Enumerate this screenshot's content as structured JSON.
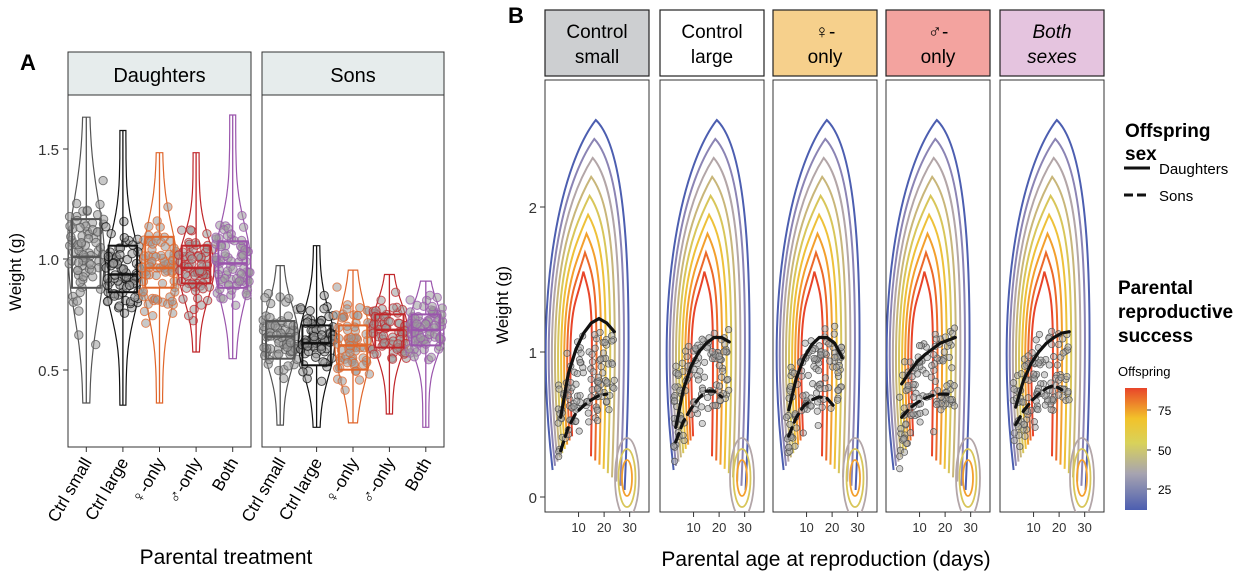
{
  "panel_a": {
    "letter": "A",
    "facets": [
      "Daughters",
      "Sons"
    ],
    "ylabel": "Weight (g)",
    "xlabel": "Parental treatment",
    "ytick_labels": [
      "0.5",
      "1.0",
      "1.5"
    ],
    "categories": [
      "Ctrl small",
      "Ctrl large",
      "♀-only",
      "♂-only",
      "Both"
    ]
  },
  "panel_b": {
    "letter": "B",
    "facets": [
      {
        "lines": [
          "Control",
          "small"
        ],
        "fill": "#cdcfd1",
        "italic": false
      },
      {
        "lines": [
          "Control",
          "large"
        ],
        "fill": "#ffffff",
        "italic": false
      },
      {
        "lines": [
          "♀-",
          "only"
        ],
        "fill": "#f6d08c",
        "italic": false
      },
      {
        "lines": [
          "♂-",
          "only"
        ],
        "fill": "#f3a39f",
        "italic": false
      },
      {
        "lines": [
          "Both",
          "sexes"
        ],
        "fill": "#e5c4df",
        "italic": true
      }
    ],
    "ylabel": "Weight (g)",
    "xlabel": "Parental age at reproduction (days)",
    "ytick_labels": [
      "0",
      "1",
      "2"
    ],
    "xtick_labels": [
      "10",
      "20",
      "30"
    ]
  },
  "legend": {
    "sex_title_lines": [
      "Offspring",
      "sex"
    ],
    "daughters": "Daughters",
    "sons": "Sons",
    "rs_title_lines": [
      "Parental",
      "reproductive",
      "success"
    ],
    "colorbar_title": "Offspring",
    "colorbar_ticks": [
      "75",
      "50",
      "25"
    ]
  },
  "colors": {
    "ctrl_small": "#555555",
    "ctrl_large": "#111111",
    "female_only": "#e0662b",
    "male_only": "#c0262a",
    "both": "#9a55ac",
    "point_grey": "#9a9a9a",
    "strip": "#e6ecec",
    "contour_low": "#4c5eb0",
    "contour_high": "#e8452a"
  },
  "chart_data": [
    {
      "type": "box",
      "panel": "A",
      "facet": "Daughters",
      "categories": [
        "Ctrl small",
        "Ctrl large",
        "♀-only",
        "♂-only",
        "Both"
      ],
      "ylabel": "Weight (g)",
      "ylim": [
        0.22,
        1.72
      ],
      "box_q1": [
        0.87,
        0.85,
        0.87,
        0.89,
        0.87
      ],
      "box_median": [
        1.01,
        0.93,
        0.96,
        0.96,
        0.98
      ],
      "box_q3": [
        1.18,
        1.06,
        1.1,
        1.06,
        1.08
      ],
      "whisker_low": [
        0.35,
        0.34,
        0.35,
        0.58,
        0.55
      ],
      "whisker_high": [
        1.64,
        1.58,
        1.48,
        1.48,
        1.65
      ]
    },
    {
      "type": "box",
      "panel": "A",
      "facet": "Sons",
      "categories": [
        "Ctrl small",
        "Ctrl large",
        "♀-only",
        "♂-only",
        "Both"
      ],
      "ylabel": "Weight (g)",
      "ylim": [
        0.22,
        1.72
      ],
      "box_q1": [
        0.55,
        0.52,
        0.5,
        0.6,
        0.61
      ],
      "box_median": [
        0.65,
        0.62,
        0.61,
        0.68,
        0.68
      ],
      "box_q3": [
        0.72,
        0.7,
        0.7,
        0.75,
        0.75
      ],
      "whisker_low": [
        0.25,
        0.24,
        0.26,
        0.3,
        0.24
      ],
      "whisker_high": [
        0.97,
        1.06,
        0.95,
        0.93,
        0.9
      ]
    },
    {
      "type": "line",
      "panel": "B",
      "xlabel": "Parental age at reproduction (days)",
      "ylabel": "Weight (g)",
      "xlim": [
        0,
        36
      ],
      "ylim": [
        -0.05,
        2.7
      ],
      "facets": [
        "Control small",
        "Control large",
        "♀-only",
        "♂-only",
        "Both sexes"
      ],
      "x": [
        3,
        6,
        9,
        12,
        15,
        18,
        21,
        24
      ],
      "series": [
        {
          "name": "Daughters",
          "facet": "Control small",
          "values": [
            0.55,
            0.85,
            1.02,
            1.13,
            1.2,
            1.23,
            1.2,
            1.14
          ]
        },
        {
          "name": "Sons",
          "facet": "Control small",
          "values": [
            0.32,
            0.48,
            0.58,
            0.63,
            0.67,
            0.7,
            0.71,
            null
          ]
        },
        {
          "name": "Daughters",
          "facet": "Control large",
          "values": [
            0.48,
            0.74,
            0.9,
            1.0,
            1.06,
            1.1,
            1.1,
            1.07
          ]
        },
        {
          "name": "Sons",
          "facet": "Control large",
          "values": [
            0.38,
            0.52,
            0.61,
            0.68,
            0.73,
            0.73,
            0.69,
            null
          ]
        },
        {
          "name": "Daughters",
          "facet": "♀-only",
          "values": [
            0.6,
            0.82,
            0.96,
            1.05,
            1.1,
            1.1,
            1.06,
            0.96
          ]
        },
        {
          "name": "Sons",
          "facet": "♀-only",
          "values": [
            0.42,
            0.55,
            0.63,
            0.67,
            0.69,
            0.68,
            0.62,
            null
          ]
        },
        {
          "name": "Daughters",
          "facet": "♂-only",
          "values": [
            0.78,
            0.86,
            0.93,
            0.98,
            1.02,
            1.06,
            1.08,
            1.1
          ]
        },
        {
          "name": "Sons",
          "facet": "♂-only",
          "values": [
            0.55,
            0.61,
            0.65,
            0.68,
            0.7,
            0.71,
            0.71,
            null
          ]
        },
        {
          "name": "Daughters",
          "facet": "Both sexes",
          "values": [
            0.62,
            0.8,
            0.92,
            1.0,
            1.06,
            1.1,
            1.13,
            1.14
          ]
        },
        {
          "name": "Sons",
          "facet": "Both sexes",
          "values": [
            0.5,
            0.59,
            0.66,
            0.71,
            0.75,
            0.77,
            0.74,
            null
          ]
        }
      ],
      "colorbar": {
        "label": "Offspring",
        "ticks": [
          25,
          50,
          75
        ],
        "range": [
          10,
          95
        ]
      }
    }
  ]
}
